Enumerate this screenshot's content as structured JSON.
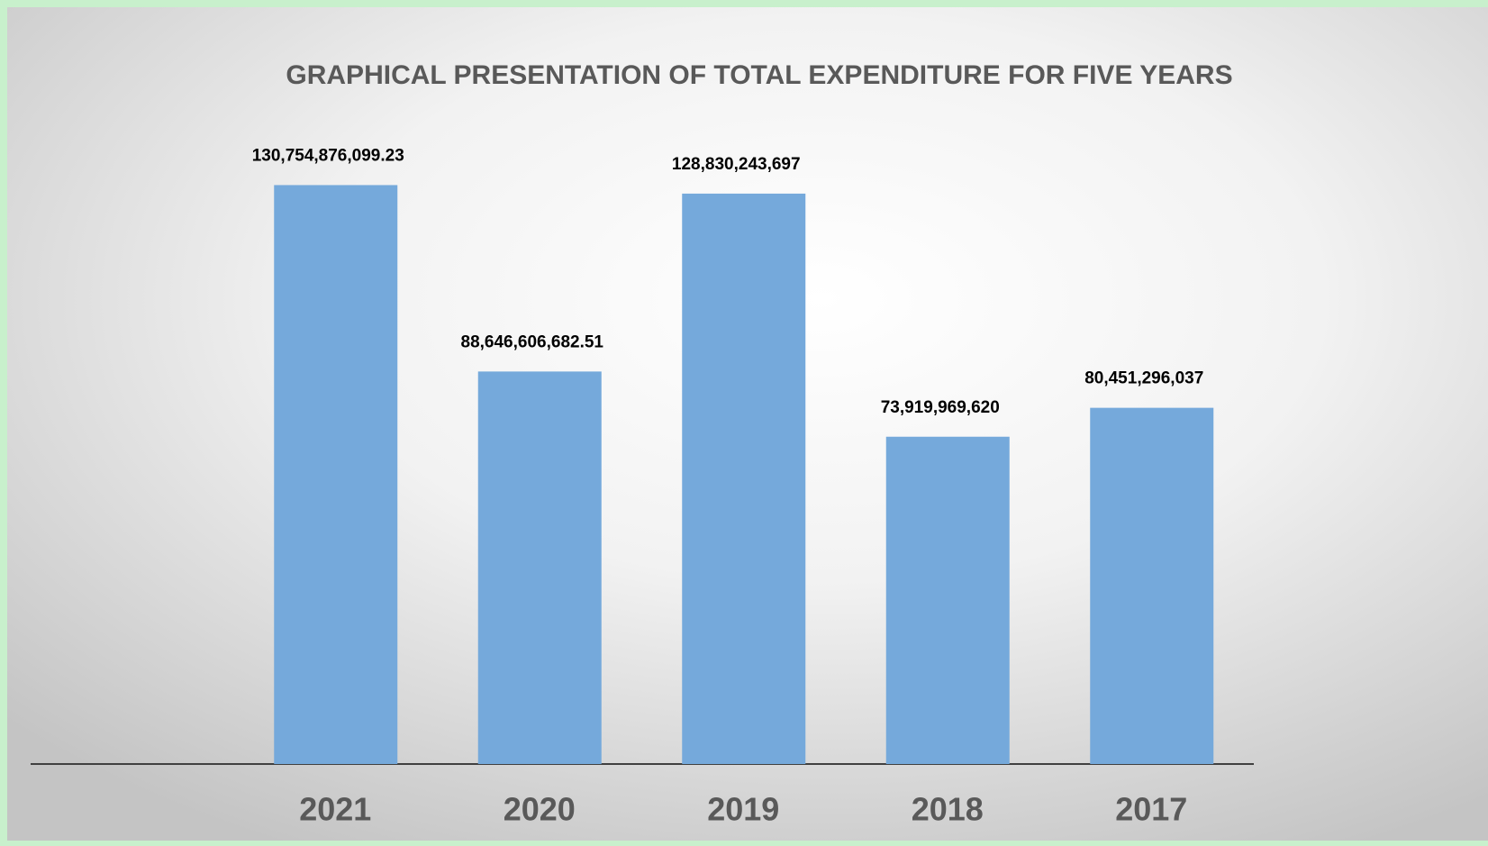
{
  "chart_data": {
    "type": "bar",
    "title": "GRAPHICAL PRESENTATION OF TOTAL EXPENDITURE FOR FIVE YEARS",
    "categories": [
      "2021",
      "2020",
      "2019",
      "2018",
      "2017"
    ],
    "values": [
      130754876099.23,
      88646606682.51,
      128830243697,
      73919969620,
      80451296037
    ],
    "value_labels": [
      "130,754,876,099.23",
      "88,646,606,682.51",
      "128,830,243,697",
      "73,919,969,620",
      "80,451,296,037"
    ],
    "color": "#75a9db",
    "ylim": [
      0,
      140000000000
    ]
  }
}
